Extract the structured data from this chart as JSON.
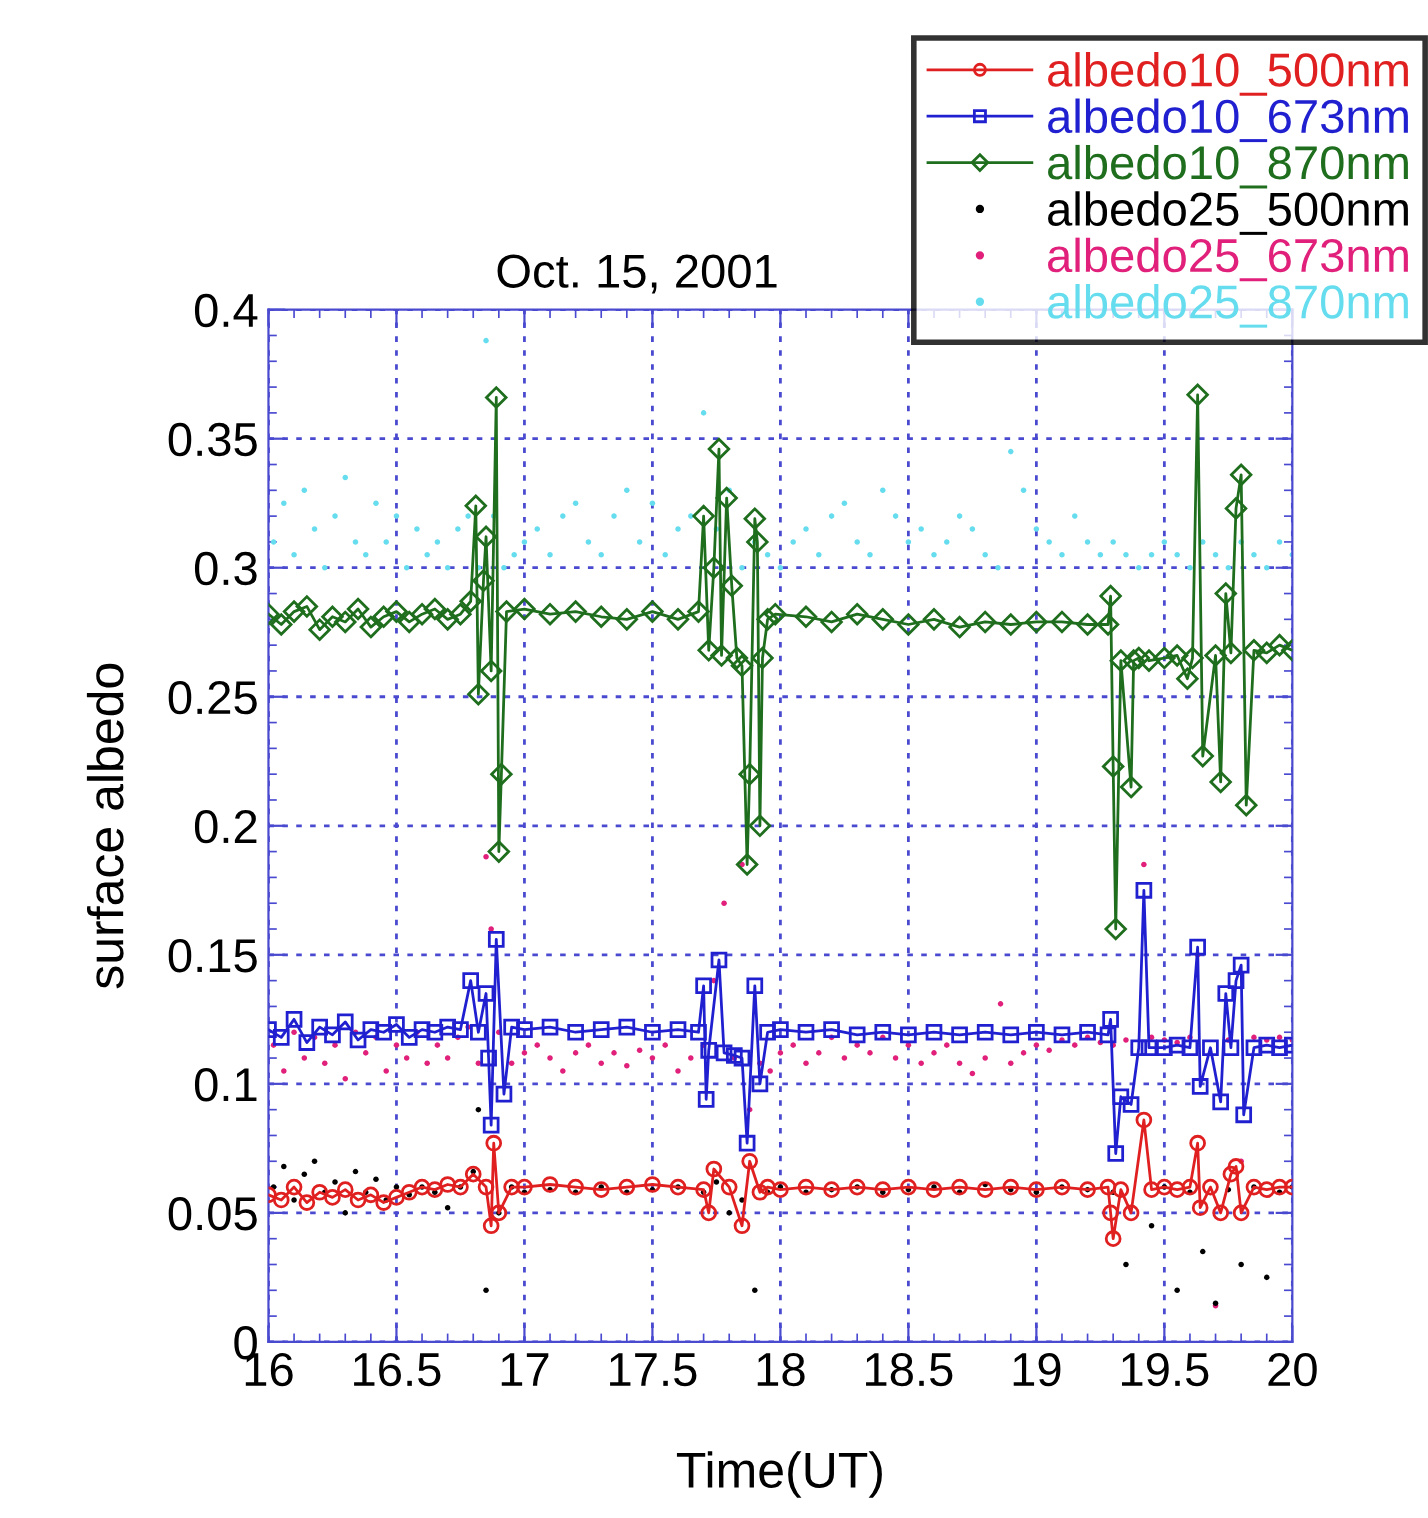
{
  "chart_data": {
    "type": "line",
    "title": "Oct. 15, 2001",
    "xlabel": "Time(UT)",
    "ylabel": "surface albedo",
    "xlim": [
      16,
      20
    ],
    "xticks": [
      16,
      16.5,
      17,
      17.5,
      18,
      18.5,
      19,
      19.5,
      20
    ],
    "ylim": [
      0,
      0.4
    ],
    "yticks": [
      0,
      0.05,
      0.1,
      0.15,
      0.2,
      0.25,
      0.3,
      0.35,
      0.4
    ],
    "grid": true,
    "legend": "top right",
    "series": [
      {
        "name": "albedo25_870nm",
        "type": "scatter",
        "marker": "circle",
        "color": "#66ddee",
        "x": [
          16.02,
          16.06,
          16.1,
          16.14,
          16.18,
          16.22,
          16.26,
          16.3,
          16.34,
          16.38,
          16.42,
          16.46,
          16.5,
          16.54,
          16.58,
          16.62,
          16.66,
          16.7,
          16.74,
          16.78,
          16.82,
          16.85,
          16.88,
          16.92,
          16.96,
          17.0,
          17.05,
          17.1,
          17.15,
          17.2,
          17.25,
          17.3,
          17.35,
          17.4,
          17.45,
          17.5,
          17.55,
          17.6,
          17.65,
          17.7,
          17.75,
          17.8,
          17.85,
          17.9,
          17.95,
          18.0,
          18.05,
          18.1,
          18.15,
          18.2,
          18.25,
          18.3,
          18.35,
          18.4,
          18.45,
          18.5,
          18.55,
          18.6,
          18.65,
          18.7,
          18.75,
          18.8,
          18.85,
          18.9,
          18.95,
          19.0,
          19.05,
          19.1,
          19.15,
          19.2,
          19.25,
          19.3,
          19.35,
          19.4,
          19.45,
          19.5,
          19.55,
          19.6,
          19.65,
          19.7,
          19.75,
          19.8,
          19.85,
          19.9,
          19.95,
          20.0
        ],
        "values": [
          0.31,
          0.325,
          0.305,
          0.33,
          0.315,
          0.3,
          0.32,
          0.335,
          0.31,
          0.305,
          0.325,
          0.31,
          0.32,
          0.3,
          0.315,
          0.305,
          0.31,
          0.3,
          0.315,
          0.32,
          0.3,
          0.388,
          0.32,
          0.3,
          0.305,
          0.31,
          0.315,
          0.305,
          0.32,
          0.325,
          0.31,
          0.305,
          0.32,
          0.33,
          0.31,
          0.325,
          0.305,
          0.315,
          0.32,
          0.36,
          0.315,
          0.33,
          0.3,
          0.31,
          0.305,
          0.3,
          0.31,
          0.315,
          0.305,
          0.32,
          0.325,
          0.31,
          0.305,
          0.33,
          0.32,
          0.31,
          0.315,
          0.305,
          0.31,
          0.32,
          0.315,
          0.305,
          0.3,
          0.345,
          0.33,
          0.315,
          0.31,
          0.305,
          0.32,
          0.31,
          0.305,
          0.31,
          0.305,
          0.3,
          0.305,
          0.31,
          0.305,
          0.3,
          0.31,
          0.305,
          0.3,
          0.31,
          0.305,
          0.3,
          0.31,
          0.305
        ]
      },
      {
        "name": "albedo25_673nm",
        "type": "scatter",
        "marker": "circle",
        "color": "#e0207a",
        "x": [
          16.02,
          16.06,
          16.1,
          16.14,
          16.18,
          16.22,
          16.26,
          16.3,
          16.34,
          16.38,
          16.42,
          16.46,
          16.5,
          16.54,
          16.58,
          16.62,
          16.66,
          16.7,
          16.74,
          16.78,
          16.82,
          16.85,
          16.87,
          16.9,
          16.95,
          17.0,
          17.05,
          17.1,
          17.15,
          17.2,
          17.25,
          17.3,
          17.35,
          17.4,
          17.45,
          17.5,
          17.55,
          17.6,
          17.65,
          17.7,
          17.74,
          17.78,
          17.82,
          17.85,
          17.88,
          17.92,
          17.96,
          18.0,
          18.05,
          18.1,
          18.15,
          18.2,
          18.25,
          18.3,
          18.35,
          18.4,
          18.45,
          18.5,
          18.55,
          18.6,
          18.65,
          18.7,
          18.75,
          18.8,
          18.86,
          18.9,
          18.95,
          19.0,
          19.05,
          19.1,
          19.15,
          19.2,
          19.25,
          19.3,
          19.35,
          19.42,
          19.45,
          19.5,
          19.55,
          19.6,
          19.63,
          19.7,
          19.75,
          19.8,
          19.85,
          19.9,
          19.95,
          20.0
        ],
        "values": [
          0.115,
          0.105,
          0.12,
          0.11,
          0.118,
          0.108,
          0.115,
          0.102,
          0.12,
          0.112,
          0.118,
          0.105,
          0.115,
          0.11,
          0.12,
          0.108,
          0.115,
          0.11,
          0.118,
          0.122,
          0.108,
          0.188,
          0.16,
          0.12,
          0.108,
          0.112,
          0.115,
          0.11,
          0.105,
          0.112,
          0.115,
          0.108,
          0.112,
          0.107,
          0.113,
          0.11,
          0.115,
          0.105,
          0.11,
          0.115,
          0.14,
          0.17,
          0.11,
          0.185,
          0.09,
          0.108,
          0.105,
          0.112,
          0.115,
          0.108,
          0.112,
          0.118,
          0.11,
          0.115,
          0.112,
          0.118,
          0.11,
          0.115,
          0.108,
          0.112,
          0.115,
          0.108,
          0.104,
          0.11,
          0.131,
          0.108,
          0.112,
          0.115,
          0.113,
          0.117,
          0.115,
          0.118,
          0.116,
          0.115,
          0.117,
          0.185,
          0.118,
          0.117,
          0.116,
          0.118,
          0.15,
          0.014,
          0.117,
          0.07,
          0.118,
          0.117,
          0.118,
          0.117
        ]
      },
      {
        "name": "albedo25_500nm",
        "type": "scatter",
        "marker": "circle",
        "color": "#000000",
        "x": [
          16.02,
          16.06,
          16.1,
          16.14,
          16.18,
          16.22,
          16.26,
          16.3,
          16.34,
          16.38,
          16.42,
          16.46,
          16.5,
          16.55,
          16.6,
          16.65,
          16.7,
          16.75,
          16.8,
          16.82,
          16.85,
          16.9,
          16.95,
          17.0,
          17.1,
          17.2,
          17.3,
          17.4,
          17.5,
          17.6,
          17.7,
          17.75,
          17.8,
          17.85,
          17.9,
          17.95,
          18.0,
          18.1,
          18.2,
          18.3,
          18.4,
          18.5,
          18.6,
          18.7,
          18.8,
          18.9,
          19.0,
          19.1,
          19.2,
          19.3,
          19.35,
          19.45,
          19.5,
          19.55,
          19.6,
          19.65,
          19.7,
          19.75,
          19.8,
          19.85,
          19.9,
          19.95,
          20.0
        ],
        "values": [
          0.06,
          0.068,
          0.055,
          0.065,
          0.07,
          0.058,
          0.062,
          0.05,
          0.066,
          0.058,
          0.063,
          0.055,
          0.06,
          0.057,
          0.06,
          0.058,
          0.052,
          0.06,
          0.066,
          0.09,
          0.02,
          0.05,
          0.06,
          0.058,
          0.059,
          0.058,
          0.06,
          0.058,
          0.059,
          0.06,
          0.058,
          0.062,
          0.05,
          0.055,
          0.02,
          0.058,
          0.06,
          0.058,
          0.059,
          0.06,
          0.058,
          0.059,
          0.06,
          0.058,
          0.061,
          0.059,
          0.058,
          0.06,
          0.059,
          0.058,
          0.03,
          0.045,
          0.06,
          0.02,
          0.058,
          0.035,
          0.015,
          0.059,
          0.03,
          0.06,
          0.025,
          0.058,
          0.06
        ]
      },
      {
        "name": "albedo10_870nm",
        "marker": "diamond",
        "color": "#1e6e1e",
        "x": [
          16.0,
          16.05,
          16.1,
          16.15,
          16.2,
          16.25,
          16.3,
          16.35,
          16.4,
          16.45,
          16.5,
          16.55,
          16.6,
          16.65,
          16.7,
          16.75,
          16.79,
          16.81,
          16.82,
          16.84,
          16.85,
          16.87,
          16.89,
          16.9,
          16.91,
          16.93,
          17.0,
          17.1,
          17.2,
          17.3,
          17.4,
          17.5,
          17.6,
          17.68,
          17.7,
          17.72,
          17.74,
          17.76,
          17.77,
          17.79,
          17.81,
          17.83,
          17.85,
          17.87,
          17.88,
          17.9,
          17.91,
          17.92,
          17.93,
          17.95,
          17.98,
          18.1,
          18.2,
          18.3,
          18.4,
          18.5,
          18.6,
          18.7,
          18.8,
          18.9,
          19.0,
          19.1,
          19.2,
          19.28,
          19.29,
          19.3,
          19.31,
          19.33,
          19.37,
          19.38,
          19.4,
          19.42,
          19.44,
          19.5,
          19.55,
          19.59,
          19.61,
          19.63,
          19.65,
          19.7,
          19.72,
          19.74,
          19.76,
          19.78,
          19.8,
          19.82,
          19.85,
          19.9,
          19.95,
          20.0
        ],
        "values": [
          0.282,
          0.278,
          0.283,
          0.285,
          0.276,
          0.281,
          0.279,
          0.284,
          0.277,
          0.281,
          0.283,
          0.279,
          0.282,
          0.284,
          0.28,
          0.282,
          0.287,
          0.324,
          0.251,
          0.295,
          0.312,
          0.26,
          0.366,
          0.19,
          0.22,
          0.283,
          0.284,
          0.282,
          0.283,
          0.281,
          0.28,
          0.283,
          0.28,
          0.283,
          0.32,
          0.268,
          0.3,
          0.346,
          0.266,
          0.327,
          0.293,
          0.265,
          0.262,
          0.185,
          0.22,
          0.319,
          0.31,
          0.2,
          0.265,
          0.28,
          0.282,
          0.281,
          0.279,
          0.282,
          0.28,
          0.278,
          0.28,
          0.277,
          0.279,
          0.278,
          0.279,
          0.279,
          0.278,
          0.278,
          0.289,
          0.223,
          0.16,
          0.264,
          0.215,
          0.264,
          0.265,
          null,
          0.264,
          0.265,
          0.266,
          0.257,
          0.265,
          0.367,
          0.227,
          0.266,
          0.217,
          0.29,
          0.267,
          0.323,
          0.336,
          0.208,
          0.268,
          0.267,
          0.27,
          0.268
        ]
      },
      {
        "name": "albedo10_673nm",
        "marker": "square",
        "color": "#2020d0",
        "x": [
          16.0,
          16.05,
          16.1,
          16.15,
          16.2,
          16.25,
          16.3,
          16.35,
          16.4,
          16.45,
          16.5,
          16.55,
          16.6,
          16.65,
          16.7,
          16.75,
          16.79,
          16.82,
          16.85,
          16.86,
          16.87,
          16.89,
          16.92,
          16.95,
          17.0,
          17.1,
          17.2,
          17.3,
          17.4,
          17.5,
          17.6,
          17.68,
          17.7,
          17.71,
          17.72,
          17.76,
          17.78,
          17.82,
          17.85,
          17.87,
          17.9,
          17.92,
          17.95,
          18.0,
          18.1,
          18.2,
          18.3,
          18.4,
          18.5,
          18.6,
          18.7,
          18.8,
          18.9,
          19.0,
          19.1,
          19.2,
          19.28,
          19.29,
          19.31,
          19.33,
          19.37,
          19.4,
          19.42,
          19.44,
          19.5,
          19.55,
          19.6,
          19.63,
          19.64,
          19.68,
          19.72,
          19.74,
          19.76,
          19.78,
          19.8,
          19.81,
          19.85,
          19.9,
          19.95,
          20.0
        ],
        "values": [
          0.121,
          0.118,
          0.125,
          0.116,
          0.122,
          0.119,
          0.124,
          0.117,
          0.121,
          0.12,
          0.123,
          0.118,
          0.121,
          0.12,
          0.122,
          0.121,
          0.14,
          0.12,
          0.135,
          0.11,
          0.084,
          0.156,
          0.096,
          0.122,
          0.121,
          0.122,
          0.12,
          0.121,
          0.122,
          0.12,
          0.121,
          0.12,
          0.138,
          0.094,
          0.113,
          0.148,
          0.112,
          0.111,
          0.11,
          0.077,
          0.138,
          0.1,
          0.12,
          0.121,
          0.12,
          0.121,
          0.119,
          0.12,
          0.119,
          0.12,
          0.119,
          0.12,
          0.119,
          0.12,
          0.119,
          0.12,
          0.119,
          0.125,
          0.073,
          0.095,
          0.092,
          0.114,
          0.175,
          0.114,
          0.114,
          0.115,
          0.114,
          0.153,
          0.099,
          0.114,
          0.093,
          0.135,
          0.114,
          0.14,
          0.146,
          0.088,
          0.114,
          0.115,
          0.114,
          0.115
        ]
      },
      {
        "name": "albedo10_500nm",
        "marker": "circle",
        "color": "#e02020",
        "x": [
          16.0,
          16.05,
          16.1,
          16.15,
          16.2,
          16.25,
          16.3,
          16.35,
          16.4,
          16.45,
          16.5,
          16.55,
          16.6,
          16.65,
          16.7,
          16.75,
          16.8,
          16.85,
          16.87,
          16.88,
          16.9,
          16.95,
          17.0,
          17.1,
          17.2,
          17.3,
          17.4,
          17.5,
          17.6,
          17.7,
          17.72,
          17.74,
          17.8,
          17.85,
          17.88,
          17.92,
          17.95,
          18.0,
          18.1,
          18.2,
          18.3,
          18.4,
          18.5,
          18.6,
          18.7,
          18.8,
          18.9,
          19.0,
          19.1,
          19.2,
          19.28,
          19.29,
          19.3,
          19.33,
          19.37,
          19.42,
          19.45,
          19.5,
          19.55,
          19.6,
          19.63,
          19.64,
          19.68,
          19.72,
          19.76,
          19.78,
          19.8,
          19.85,
          19.9,
          19.95,
          20.0
        ],
        "values": [
          0.057,
          0.055,
          0.06,
          0.054,
          0.058,
          0.056,
          0.059,
          0.055,
          0.057,
          0.054,
          0.056,
          0.058,
          0.06,
          0.059,
          0.061,
          0.06,
          0.065,
          0.06,
          0.045,
          0.077,
          0.05,
          0.06,
          0.06,
          0.061,
          0.06,
          0.059,
          0.06,
          0.061,
          0.06,
          0.059,
          0.05,
          0.067,
          0.06,
          0.045,
          0.07,
          0.058,
          0.06,
          0.059,
          0.06,
          0.059,
          0.06,
          0.059,
          0.06,
          0.059,
          0.06,
          0.059,
          0.06,
          0.059,
          0.06,
          0.059,
          0.06,
          0.05,
          0.04,
          0.059,
          0.05,
          0.086,
          0.059,
          0.06,
          0.059,
          0.06,
          0.077,
          0.052,
          0.06,
          0.05,
          0.065,
          0.068,
          0.05,
          0.06,
          0.059,
          0.06,
          0.06
        ]
      }
    ]
  }
}
